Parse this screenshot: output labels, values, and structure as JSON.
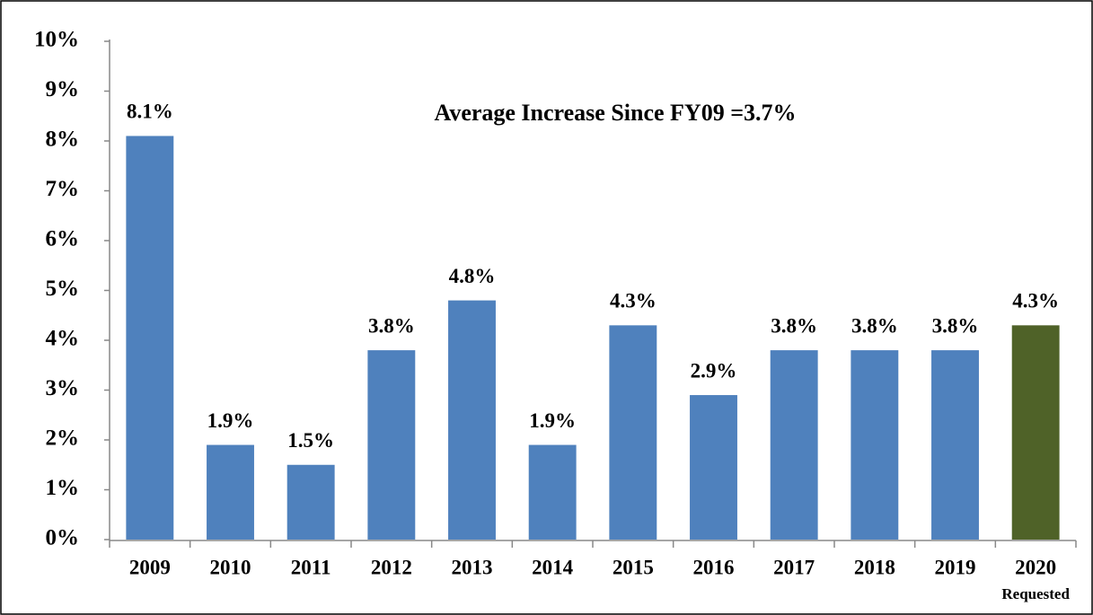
{
  "chart_data": {
    "type": "bar",
    "title": "Average Increase Since FY09 =3.7%",
    "categories": [
      "2009",
      "2010",
      "2011",
      "2012",
      "2013",
      "2014",
      "2015",
      "2016",
      "2017",
      "2018",
      "2019",
      "2020"
    ],
    "category_note": "Requested",
    "values": [
      8.1,
      1.9,
      1.5,
      3.8,
      4.8,
      1.9,
      4.3,
      2.9,
      3.8,
      3.8,
      3.8,
      4.3
    ],
    "value_labels": [
      "8.1%",
      "1.9%",
      "1.5%",
      "3.8%",
      "4.8%",
      "1.9%",
      "4.3%",
      "2.9%",
      "3.8%",
      "3.8%",
      "3.8%",
      "4.3%"
    ],
    "colors": [
      "#4f81bd",
      "#4f81bd",
      "#4f81bd",
      "#4f81bd",
      "#4f81bd",
      "#4f81bd",
      "#4f81bd",
      "#4f81bd",
      "#4f81bd",
      "#4f81bd",
      "#4f81bd",
      "#4f6228"
    ],
    "ylim": [
      0,
      10
    ],
    "yticks": [
      {
        "value": 0,
        "label": "0%"
      },
      {
        "value": 1,
        "label": "1%"
      },
      {
        "value": 2,
        "label": "2%"
      },
      {
        "value": 3,
        "label": "3%"
      },
      {
        "value": 4,
        "label": "4%"
      },
      {
        "value": 5,
        "label": "5%"
      },
      {
        "value": 6,
        "label": "6%"
      },
      {
        "value": 7,
        "label": "7%"
      },
      {
        "value": 8,
        "label": "8%"
      },
      {
        "value": 9,
        "label": "9%"
      },
      {
        "value": 10,
        "label": "10%"
      }
    ],
    "grid": false
  }
}
